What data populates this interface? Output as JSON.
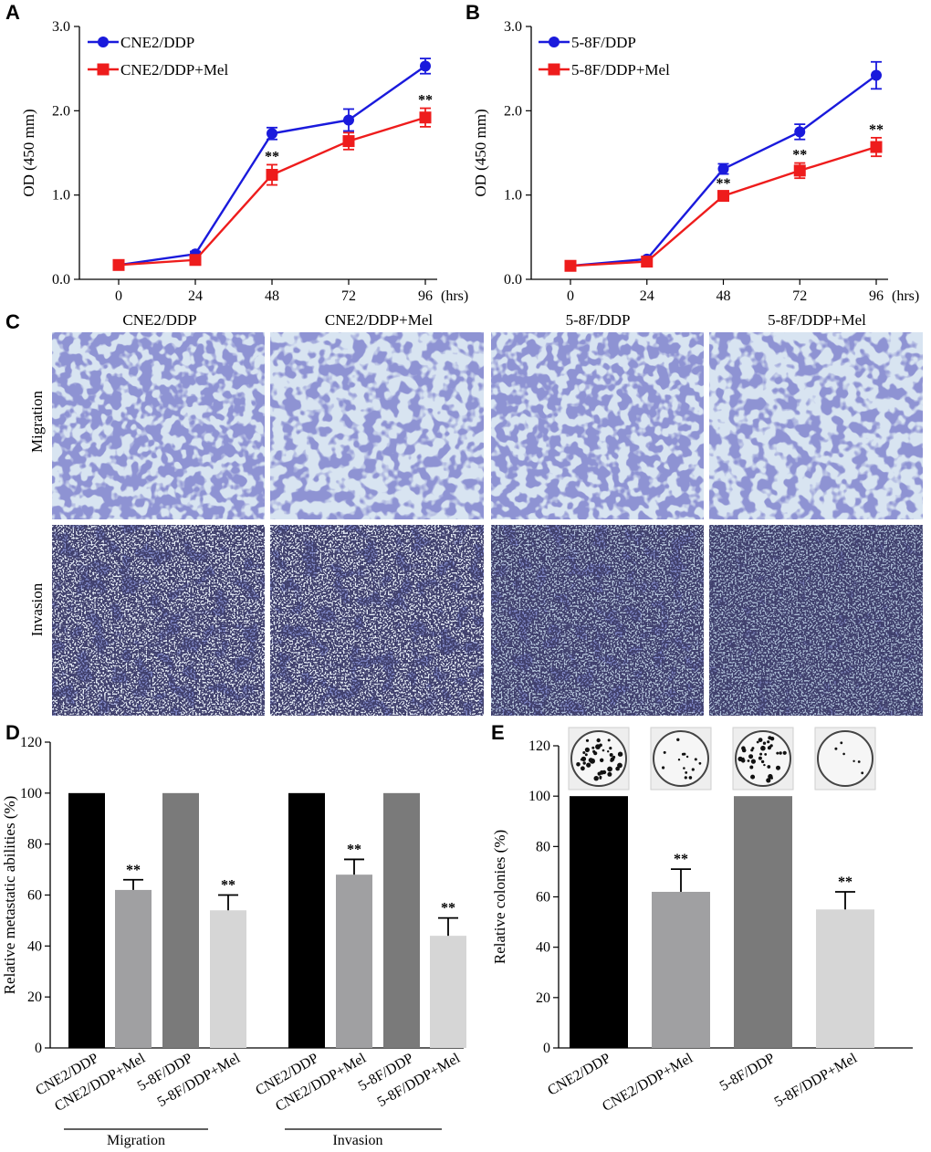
{
  "panels": {
    "A": "A",
    "B": "B",
    "C": "C",
    "D": "D",
    "E": "E"
  },
  "chart_data": [
    {
      "id": "A",
      "type": "line",
      "ylabel": "OD (450 mm)",
      "xunit": "(hrs)",
      "x": [
        0,
        24,
        48,
        72,
        96
      ],
      "xticks": [
        "0",
        "24",
        "48",
        "72",
        "96"
      ],
      "ylim": [
        0,
        3
      ],
      "yticks": [
        "0.0",
        "1.0",
        "2.0",
        "3.0"
      ],
      "series": [
        {
          "name": "CNE2/DDP",
          "color": "#1a1adc",
          "marker": "circle",
          "values": [
            0.17,
            0.3,
            1.73,
            1.89,
            2.53
          ],
          "errors": [
            0.03,
            0.03,
            0.07,
            0.13,
            0.09
          ],
          "stars": [
            "",
            "",
            "",
            "",
            ""
          ]
        },
        {
          "name": "CNE2/DDP+Mel",
          "color": "#ee1c1c",
          "marker": "square",
          "values": [
            0.17,
            0.23,
            1.24,
            1.64,
            1.92
          ],
          "errors": [
            0.03,
            0.03,
            0.12,
            0.1,
            0.11
          ],
          "stars": [
            "",
            "",
            "**",
            "",
            "**"
          ]
        }
      ]
    },
    {
      "id": "B",
      "type": "line",
      "ylabel": "OD (450 mm)",
      "xunit": "(hrs)",
      "x": [
        0,
        24,
        48,
        72,
        96
      ],
      "xticks": [
        "0",
        "24",
        "48",
        "72",
        "96"
      ],
      "ylim": [
        0,
        3
      ],
      "yticks": [
        "0.0",
        "1.0",
        "2.0",
        "3.0"
      ],
      "series": [
        {
          "name": "5-8F/DDP",
          "color": "#1a1adc",
          "marker": "circle",
          "values": [
            0.16,
            0.24,
            1.31,
            1.75,
            2.42
          ],
          "errors": [
            0.03,
            0.03,
            0.06,
            0.09,
            0.16
          ],
          "stars": [
            "",
            "",
            "",
            "",
            ""
          ]
        },
        {
          "name": "5-8F/DDP+Mel",
          "color": "#ee1c1c",
          "marker": "square",
          "values": [
            0.16,
            0.21,
            0.99,
            1.29,
            1.57
          ],
          "errors": [
            0.03,
            0.03,
            0.05,
            0.09,
            0.11
          ],
          "stars": [
            "",
            "",
            "**",
            "**",
            "**"
          ]
        }
      ]
    },
    {
      "id": "D",
      "type": "bar",
      "ylabel": "Relative metastatic abilities (%)",
      "ylim": [
        0,
        120
      ],
      "yticks": [
        "0",
        "20",
        "40",
        "60",
        "80",
        "100",
        "120"
      ],
      "categories": [
        "CNE2/DDP",
        "CNE2/DDP+Mel",
        "5-8F/DDP",
        "5-8F/DDP+Mel",
        "CNE2/DDP",
        "CNE2/DDP+Mel",
        "5-8F/DDP",
        "5-8F/DDP+Mel"
      ],
      "values": [
        100,
        62,
        100,
        54,
        100,
        68,
        100,
        44
      ],
      "errors": [
        0,
        4,
        0,
        6,
        0,
        6,
        0,
        7
      ],
      "colors": [
        "#000000",
        "#a0a0a2",
        "#7a7a7a",
        "#d6d6d6",
        "#000000",
        "#a0a0a2",
        "#7a7a7a",
        "#d6d6d6"
      ],
      "stars": [
        "",
        "**",
        "",
        "**",
        "",
        "**",
        "",
        "**"
      ],
      "groups": [
        "Migration",
        "Invasion"
      ]
    },
    {
      "id": "E",
      "type": "bar",
      "ylabel": "Relative colonies (%)",
      "ylim": [
        0,
        120
      ],
      "yticks": [
        "0",
        "20",
        "40",
        "60",
        "80",
        "100",
        "120"
      ],
      "categories": [
        "CNE2/DDP",
        "CNE2/DDP+Mel",
        "5-8F/DDP",
        "5-8F/DDP+Mel"
      ],
      "values": [
        100,
        62,
        100,
        55
      ],
      "errors": [
        0,
        9,
        0,
        7
      ],
      "colors": [
        "#000000",
        "#a0a0a2",
        "#7a7a7a",
        "#d6d6d6"
      ],
      "stars": [
        "",
        "**",
        "",
        "**"
      ],
      "colony_density": [
        1.0,
        0.35,
        0.9,
        0.15
      ]
    }
  ],
  "micrographs": {
    "columns": [
      "CNE2/DDP",
      "CNE2/DDP+Mel",
      "5-8F/DDP",
      "5-8F/DDP+Mel"
    ],
    "rows": [
      "Migration",
      "Invasion"
    ]
  }
}
